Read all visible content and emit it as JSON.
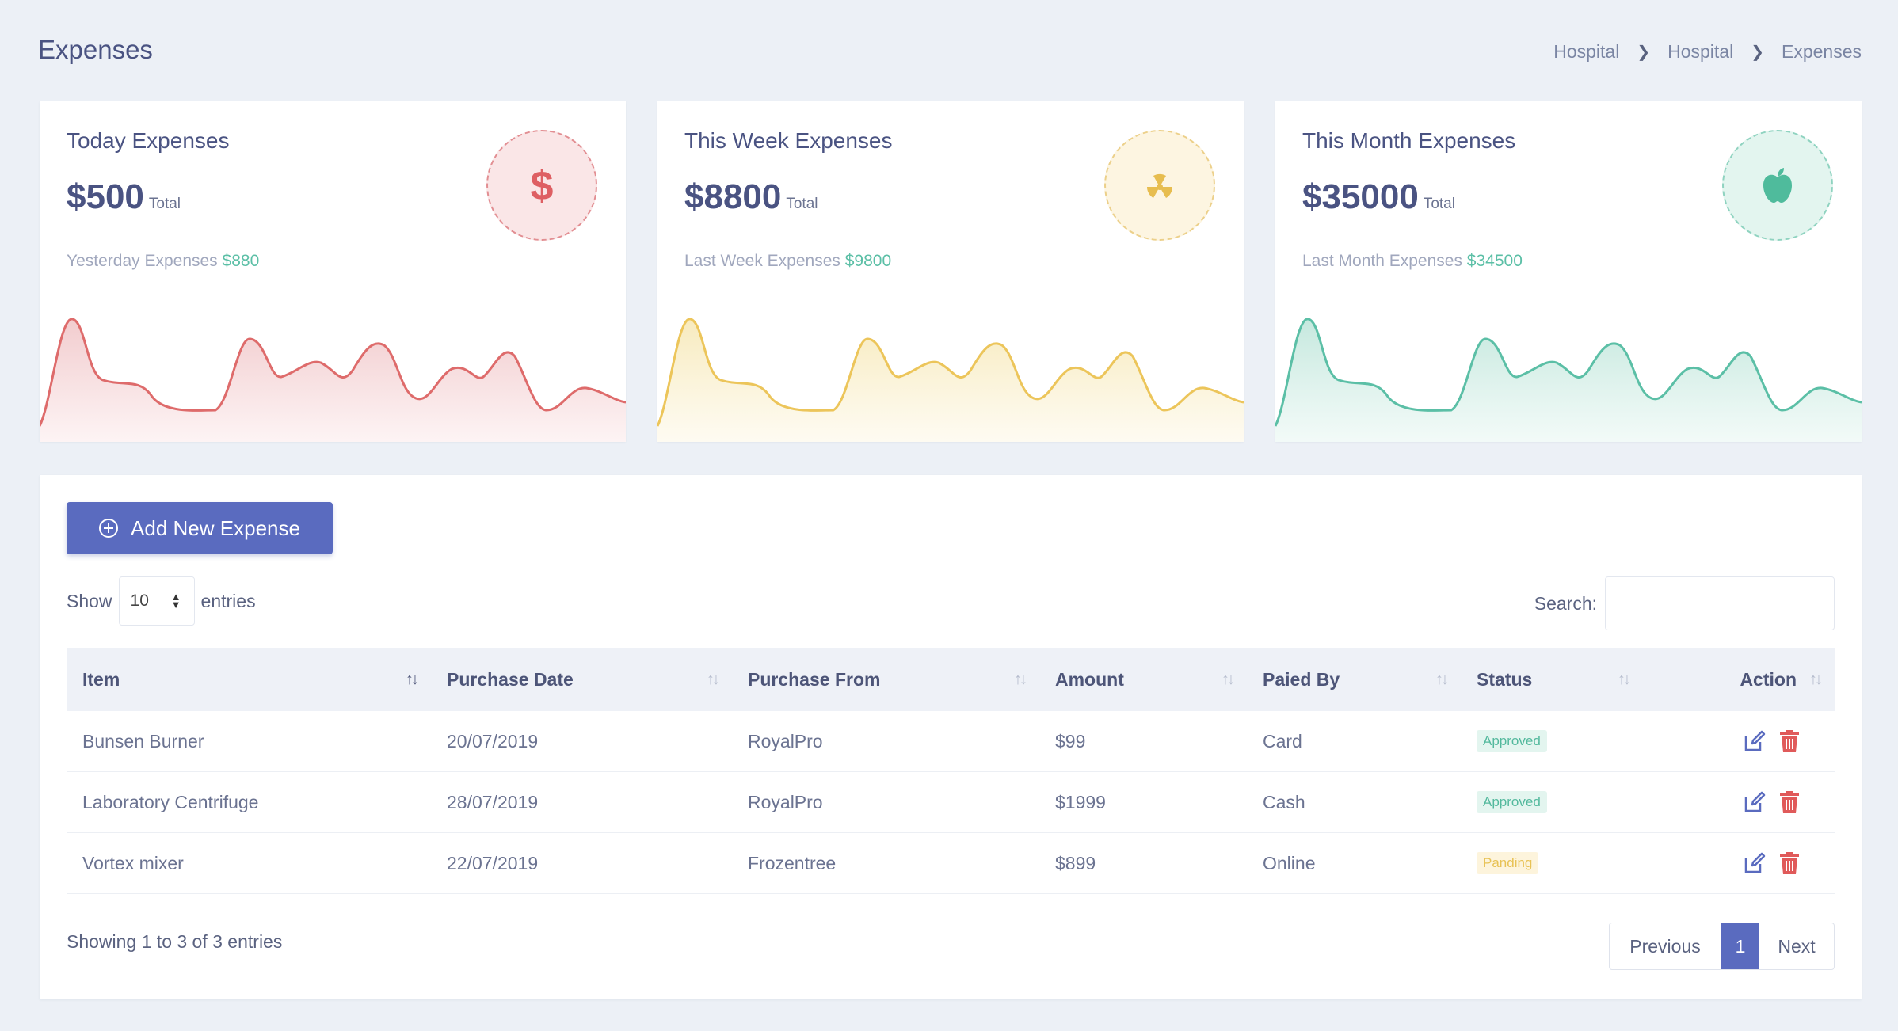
{
  "page": {
    "title": "Expenses",
    "breadcrumb": [
      "Hospital",
      "Hospital",
      "Expenses"
    ]
  },
  "cards": [
    {
      "title": "Today Expenses",
      "amount": "$500",
      "total_label": "Total",
      "compare_label": "Yesterday Expenses",
      "compare_value": "$880",
      "icon": "dollar-icon",
      "color": "#de6b6b"
    },
    {
      "title": "This Week Expenses",
      "amount": "$8800",
      "total_label": "Total",
      "compare_label": "Last Week Expenses",
      "compare_value": "$9800",
      "icon": "radiation-icon",
      "color": "#ecc55a"
    },
    {
      "title": "This Month Expenses",
      "amount": "$35000",
      "total_label": "Total",
      "compare_label": "Last Month Expenses",
      "compare_value": "$34500",
      "icon": "apple-icon",
      "color": "#5bbfa6"
    }
  ],
  "toolbar": {
    "add_label": "Add New Expense",
    "show_label": "Show",
    "entries_label": "entries",
    "page_length": "10",
    "search_label": "Search:"
  },
  "table": {
    "columns": [
      "Item",
      "Purchase Date",
      "Purchase From",
      "Amount",
      "Paied By",
      "Status",
      "Action"
    ],
    "rows": [
      {
        "item": "Bunsen Burner",
        "date": "20/07/2019",
        "from": "RoyalPro",
        "amount": "$99",
        "paid_by": "Card",
        "status": "Approved"
      },
      {
        "item": "Laboratory Centrifuge",
        "date": "28/07/2019",
        "from": "RoyalPro",
        "amount": "$1999",
        "paid_by": "Cash",
        "status": "Approved"
      },
      {
        "item": "Vortex mixer",
        "date": "22/07/2019",
        "from": "Frozentree",
        "amount": "$899",
        "paid_by": "Online",
        "status": "Panding"
      }
    ]
  },
  "footer": {
    "info": "Showing 1 to 3 of 3 entries",
    "prev_label": "Previous",
    "page": "1",
    "next_label": "Next"
  }
}
